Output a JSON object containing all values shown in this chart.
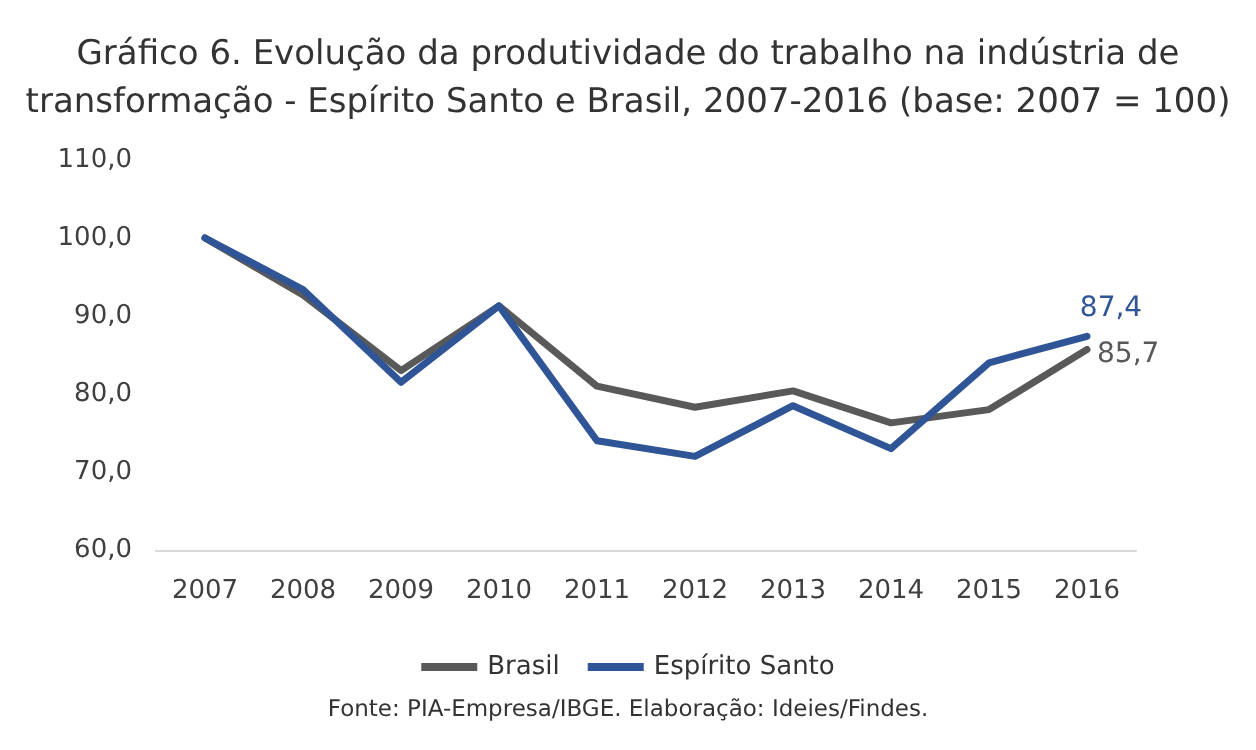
{
  "chart_data": {
    "type": "line",
    "title": "Gráfico 6. Evolução da produtividade do trabalho na indústria de\ntransformação - Espírito Santo e Brasil, 2007-2016 (base: 2007 = 100)",
    "categories": [
      "2007",
      "2008",
      "2009",
      "2010",
      "2011",
      "2012",
      "2013",
      "2014",
      "2015",
      "2016"
    ],
    "series": [
      {
        "name": "Brasil",
        "color": "#595959",
        "values": [
          100,
          92.7,
          83,
          91.3,
          81,
          78.3,
          80.4,
          76.3,
          78,
          85.7
        ],
        "value_labels": [
          null,
          null,
          null,
          null,
          null,
          null,
          null,
          null,
          null,
          "85,7"
        ]
      },
      {
        "name": "Espírito Santo",
        "color": "#2f5597",
        "values": [
          100,
          93.4,
          81.5,
          91.3,
          74,
          72,
          78.5,
          73,
          84,
          87.4
        ],
        "value_labels": [
          null,
          null,
          null,
          null,
          null,
          null,
          null,
          null,
          null,
          "87,4"
        ]
      }
    ],
    "ylim": [
      60,
      110
    ],
    "yticks": [
      {
        "value": 60,
        "label": "60,0"
      },
      {
        "value": 70,
        "label": "70,0"
      },
      {
        "value": 80,
        "label": "80,0"
      },
      {
        "value": 90,
        "label": "90,0"
      },
      {
        "value": 100,
        "label": "100,0"
      },
      {
        "value": 110,
        "label": "110,0"
      }
    ],
    "grid": false,
    "legend": "bottom",
    "marker": "none",
    "line_style": "solid",
    "annotations": [
      "Fonte: PIA-Empresa/IBGE. Elaboração: Ideies/Findes."
    ]
  }
}
